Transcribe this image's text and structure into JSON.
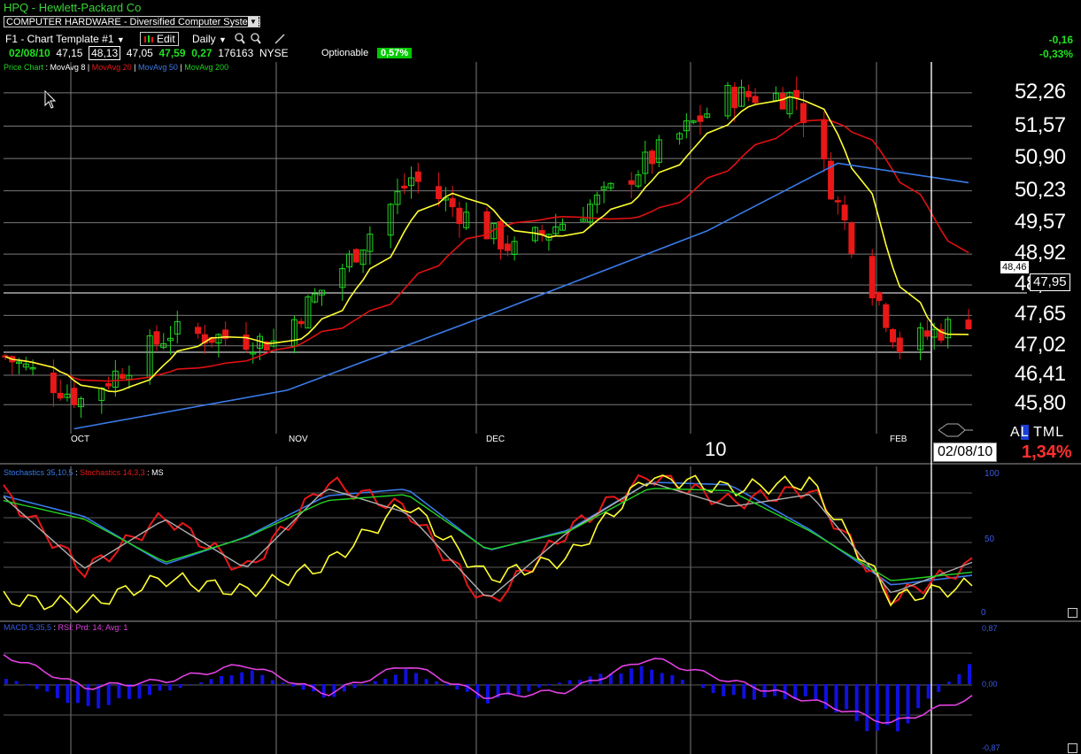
{
  "header": {
    "title": "HPQ - Hewlett-Packard Co",
    "sector": "COMPUTER HARDWARE - Diversified Computer Systems",
    "template": "F1 - Chart Template #1",
    "edit_label": "Edit",
    "period": "Daily",
    "change_abs": "-0,16",
    "change_pct": "-0,33%"
  },
  "quote": {
    "date": "02/08/10",
    "open": "47,15",
    "high": "48,13",
    "low": "47,05",
    "close": "47,59",
    "change": "0,27",
    "volume": "176163",
    "exchange": "NYSE",
    "optionable_label": "Optionable",
    "optionable_value": "0,57%"
  },
  "legend": {
    "price": "Price Chart",
    "ma8": "MovAvg 8",
    "ma20": "MovAvg 20",
    "ma50": "MovAvg 50",
    "ma200": "MovAvg 200",
    "stoch_a": "Stochastics 35,10,5",
    "stoch_b": "Stochastics 14,3,3",
    "stoch_c": "MS",
    "macd": "MACD 5,35,5",
    "rsi": "RSI: Prd: 14; Avg: 1"
  },
  "price_axis": {
    "ticks": [
      "52,26",
      "51,57",
      "50,90",
      "50,23",
      "49,57",
      "48,92",
      "48,28",
      "47,65",
      "47,02",
      "46,41",
      "45,80"
    ],
    "tag_prev": "48,46",
    "tag_last": "47,95"
  },
  "time_axis": {
    "months": [
      "OCT",
      "NOV",
      "DEC",
      "10",
      "FEB"
    ],
    "cursor_date": "02/08/10"
  },
  "side": {
    "al_a": "A",
    "al_l": "L",
    "tml": "TML",
    "pct": "1,34%"
  },
  "stoch_axis": {
    "ticks": [
      "100",
      "50",
      "0"
    ]
  },
  "macd_axis": {
    "ticks": [
      "0,87",
      "0,00",
      "-0,87"
    ]
  },
  "colors": {
    "up": "#1ed61e",
    "down": "#e81818",
    "ma8": "#ffff33",
    "ma20": "#e01010",
    "ma50": "#3a7ae8",
    "grid": "#7a7a7a",
    "macd": "#1010e0",
    "rsi": "#e040e0"
  },
  "chart_data": [
    {
      "type": "candlestick",
      "title": "HPQ - Hewlett-Packard Co",
      "x_range": [
        "2009-09-21",
        "2010-02-08"
      ],
      "ylim": [
        45.2,
        52.9
      ],
      "close_sparse": [
        {
          "x": "2009-09-21",
          "close": 46.8
        },
        {
          "x": "2009-10-02",
          "close": 45.9
        },
        {
          "x": "2009-10-15",
          "close": 47.3
        },
        {
          "x": "2009-10-30",
          "close": 47.1
        },
        {
          "x": "2009-11-10",
          "close": 48.8
        },
        {
          "x": "2009-11-19",
          "close": 50.5
        },
        {
          "x": "2009-12-04",
          "close": 49.0
        },
        {
          "x": "2009-12-17",
          "close": 50.1
        },
        {
          "x": "2010-01-04",
          "close": 52.2
        },
        {
          "x": "2010-01-14",
          "close": 52.2
        },
        {
          "x": "2010-01-22",
          "close": 49.2
        },
        {
          "x": "2010-01-29",
          "close": 47.0
        },
        {
          "x": "2010-02-08",
          "close": 47.59
        }
      ],
      "series": [
        {
          "name": "MovAvg 8",
          "values": [
            46.2,
            46.6,
            47.6,
            47.6,
            48.7,
            50.2,
            49.6,
            49.7,
            52.1,
            52.3,
            50.9,
            48.0,
            47.8
          ]
        },
        {
          "name": "MovAvg 20",
          "values": [
            45.5,
            46.2,
            46.6,
            47.3,
            47.8,
            49.3,
            49.5,
            49.6,
            51.5,
            52.0,
            51.7,
            49.5,
            48.9
          ]
        },
        {
          "name": "MovAvg 50",
          "values": null,
          "note_x": [
            "2009-10-01",
            "2009-11-01",
            "2009-12-01",
            "2010-01-01",
            "2010-01-20",
            "2010-02-08"
          ],
          "note_y": [
            45.3,
            46.1,
            47.7,
            49.4,
            50.8,
            50.4
          ]
        }
      ]
    },
    {
      "type": "line",
      "ylim": [
        0,
        100
      ],
      "x_range": [
        "2009-09-21",
        "2010-02-08"
      ],
      "series": [
        {
          "name": "Stochastics 35,10,5",
          "values": [
            85,
            70,
            35,
            55,
            85,
            90,
            45,
            60,
            95,
            93,
            60,
            20,
            27
          ]
        },
        {
          "name": "Stochastics 14,3,3",
          "values": [
            88,
            30,
            70,
            30,
            95,
            75,
            5,
            60,
            100,
            80,
            90,
            10,
            35
          ]
        },
        {
          "name": "MS",
          "values": [
            10,
            5,
            25,
            15,
            35,
            80,
            25,
            40,
            100,
            90,
            95,
            10,
            20
          ]
        }
      ]
    },
    {
      "type": "bar",
      "ylim": [
        -0.87,
        0.87
      ],
      "x_range": [
        "2009-09-21",
        "2010-02-08"
      ],
      "series": [
        {
          "name": "MACD 5,35,5",
          "values": [
            0.1,
            -0.35,
            -0.1,
            0.2,
            -0.2,
            0.2,
            -0.25,
            0.05,
            0.25,
            -0.2,
            -0.2,
            -0.75,
            0.3
          ]
        },
        {
          "name": "RSI: Prd: 14; Avg: 1",
          "values": [
            0.45,
            -0.05,
            0.05,
            0.3,
            -0.15,
            0.3,
            -0.2,
            -0.1,
            0.4,
            0.05,
            -0.25,
            -0.6,
            -0.2
          ]
        }
      ]
    }
  ]
}
